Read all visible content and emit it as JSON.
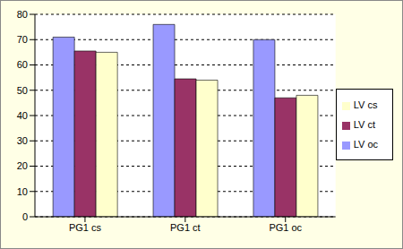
{
  "chart_data": {
    "type": "bar",
    "categories": [
      "PG1 cs",
      "PG1 ct",
      "PG1 oc"
    ],
    "series": [
      {
        "name": "LV oc",
        "color": "#9999ff",
        "values": [
          71,
          76,
          70
        ]
      },
      {
        "name": "LV ct",
        "color": "#993366",
        "values": [
          65.5,
          54.5,
          47
        ]
      },
      {
        "name": "LV cs",
        "color": "#ffffcc",
        "values": [
          65,
          54,
          48
        ]
      }
    ],
    "ylim": [
      0,
      80
    ],
    "yticks": [
      0,
      10,
      20,
      30,
      40,
      50,
      60,
      70,
      80
    ],
    "grid": true,
    "legend": "right"
  }
}
